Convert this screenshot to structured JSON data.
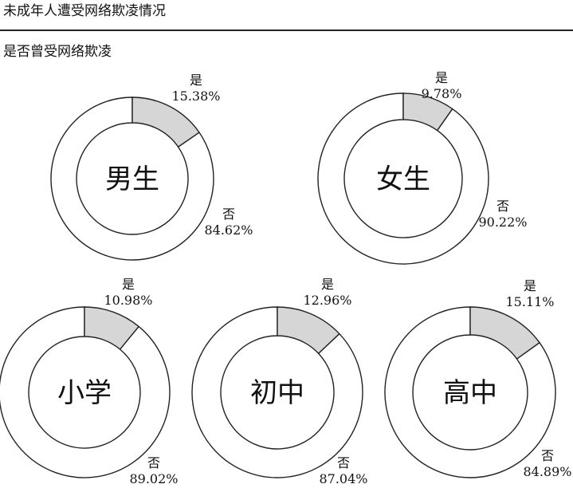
{
  "title": "未成年人遭受网络欺凌情况",
  "subtitle": "是否曾受网络欺凌",
  "colors": {
    "yes": "#d6d6d6",
    "no": "#ffffff",
    "stroke": "#222222"
  },
  "chart_data": [
    {
      "type": "pie",
      "name": "男生",
      "categories": [
        "是",
        "否"
      ],
      "value_labels": [
        "15.38%",
        "84.62%"
      ],
      "values": [
        15.38,
        84.62
      ]
    },
    {
      "type": "pie",
      "name": "女生",
      "categories": [
        "是",
        "否"
      ],
      "value_labels": [
        "9.78%",
        "90.22%"
      ],
      "values": [
        9.78,
        90.22
      ]
    },
    {
      "type": "pie",
      "name": "小学",
      "categories": [
        "是",
        "否"
      ],
      "value_labels": [
        "10.98%",
        "89.02%"
      ],
      "values": [
        10.98,
        89.02
      ]
    },
    {
      "type": "pie",
      "name": "初中",
      "categories": [
        "是",
        "否"
      ],
      "value_labels": [
        "12.96%",
        "87.04%"
      ],
      "values": [
        12.96,
        87.04
      ]
    },
    {
      "type": "pie",
      "name": "高中",
      "categories": [
        "是",
        "否"
      ],
      "value_labels": [
        "15.11%",
        "84.89%"
      ],
      "values": [
        15.11,
        84.89
      ]
    }
  ]
}
